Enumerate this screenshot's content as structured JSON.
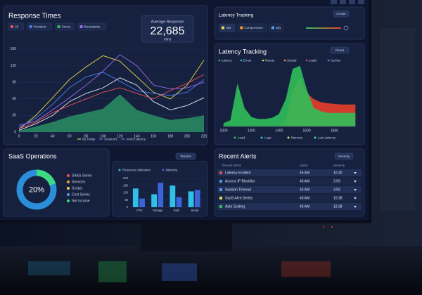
{
  "response_times": {
    "title": "Response Times",
    "filters": [
      "All",
      "Resident",
      "Sensu",
      "Boundaries"
    ],
    "chart": {
      "type": "line",
      "x": [
        0,
        20,
        40,
        60,
        80,
        100,
        120,
        140,
        160,
        180,
        200,
        220
      ],
      "xlim": [
        0,
        220
      ],
      "xticks": [
        0,
        20,
        40,
        60,
        80,
        100,
        120,
        140,
        160,
        180,
        200,
        220
      ],
      "ylim": [
        0,
        160
      ],
      "yticks": [
        0,
        30,
        60,
        90,
        120,
        150
      ],
      "area": {
        "color": "#2e9e6a",
        "values": [
          2,
          10,
          18,
          28,
          35,
          42,
          68,
          40,
          30,
          22,
          25,
          30
        ]
      },
      "series": [
        {
          "name": "By Today",
          "color": "#e8d84a",
          "values": [
            5,
            30,
            62,
            95,
            118,
            138,
            128,
            100,
            72,
            60,
            85,
            130
          ]
        },
        {
          "name": "Sessions",
          "color": "#4f7cf0",
          "values": [
            8,
            25,
            50,
            80,
            100,
            108,
            92,
            75,
            70,
            66,
            72,
            95
          ]
        },
        {
          "name": "Avert Latency",
          "color": "#9b6cf0",
          "values": [
            12,
            20,
            40,
            62,
            85,
            110,
            140,
            120,
            85,
            78,
            80,
            90
          ]
        },
        {
          "color": "#e8ecf5",
          "values": [
            3,
            15,
            30,
            55,
            70,
            80,
            98,
            85,
            55,
            40,
            48,
            62
          ]
        },
        {
          "color": "#e8505a",
          "values": [
            6,
            18,
            35,
            48,
            60,
            72,
            80,
            70,
            60,
            75,
            88,
            104
          ]
        }
      ]
    }
  },
  "average": {
    "label": "Average Response",
    "value": "22,685",
    "unit": "mins"
  },
  "latency_top": {
    "title": "Latency Tracking",
    "button": "Create",
    "tabs": [
      "Alts",
      "Compression",
      "Sky"
    ]
  },
  "latency": {
    "title": "Latency Tracking",
    "button": "Reset",
    "legend": [
      "Latency",
      "Errors",
      "Resets",
      "Socials",
      "Loads",
      "Caches"
    ],
    "chart": {
      "type": "area",
      "x": [
        1000,
        1050,
        1100,
        1150,
        1200,
        1250,
        1300,
        1350,
        1400,
        1450,
        1500,
        1550,
        1600,
        1650,
        1700,
        1750,
        1800,
        1850,
        1900,
        1950
      ],
      "xlim": [
        1000,
        1950
      ],
      "xticks": [
        1000,
        1200,
        1400,
        1600,
        1800
      ],
      "ylim": [
        0,
        100
      ],
      "series": [
        {
          "color": "#e8402a",
          "values": [
            0,
            0,
            0,
            0,
            0,
            0,
            0,
            0,
            0,
            10,
            60,
            80,
            55,
            45,
            40,
            38,
            37,
            36,
            36,
            36
          ]
        },
        {
          "color": "#2fbf5a",
          "values": [
            5,
            10,
            70,
            30,
            15,
            12,
            12,
            14,
            20,
            45,
            95,
            100,
            60,
            30,
            25,
            22,
            22,
            22,
            22,
            22
          ]
        }
      ]
    },
    "bottom_legend": [
      "Load",
      "Logs",
      "Memory",
      "Low Latency"
    ]
  },
  "saas": {
    "title": "SaaS Operations",
    "button": "Tenants",
    "donut": {
      "value": 20,
      "label": "20%",
      "color": "#3ddc84",
      "track": "#2a8fd8"
    },
    "legend": [
      {
        "name": "SAAS Series",
        "color": "#e8505a"
      },
      {
        "name": "Services",
        "color": "#f0a030"
      },
      {
        "name": "Scripts",
        "color": "#e8d84a"
      },
      {
        "name": "Cost Series",
        "color": "#4f9cf0"
      },
      {
        "name": "Net Income",
        "color": "#3ddc84"
      }
    ]
  },
  "resources": {
    "chart": {
      "type": "bar",
      "categories": [
        "CPU",
        "Storage",
        "Disk",
        "Serial"
      ],
      "ylim": [
        0,
        200
      ],
      "yticks": [
        0,
        50,
        100,
        150,
        200
      ],
      "series": [
        {
          "name": "Resource Utilization",
          "color": "#2fc0e8",
          "values": [
            130,
            90,
            150,
            110
          ]
        },
        {
          "name": "Memory",
          "color": "#3a64d8",
          "values": [
            60,
            170,
            70,
            120
          ]
        }
      ]
    }
  },
  "alerts": {
    "title": "Recent Alerts",
    "button": "Severity",
    "columns": [
      "Recent Alerts",
      "Alerts",
      "Severity"
    ],
    "rows": [
      [
        "Latency Incident",
        "45 AM",
        "10:30"
      ],
      [
        "Access IP Blocklist",
        "43 AM",
        "3:59"
      ],
      [
        "Session Timeout",
        "43 AM",
        "3:59"
      ],
      [
        "SaaS Alert Series",
        "43 AM",
        "10:38"
      ],
      [
        "Auto Scaling",
        "43 AM",
        "12:38"
      ]
    ]
  }
}
